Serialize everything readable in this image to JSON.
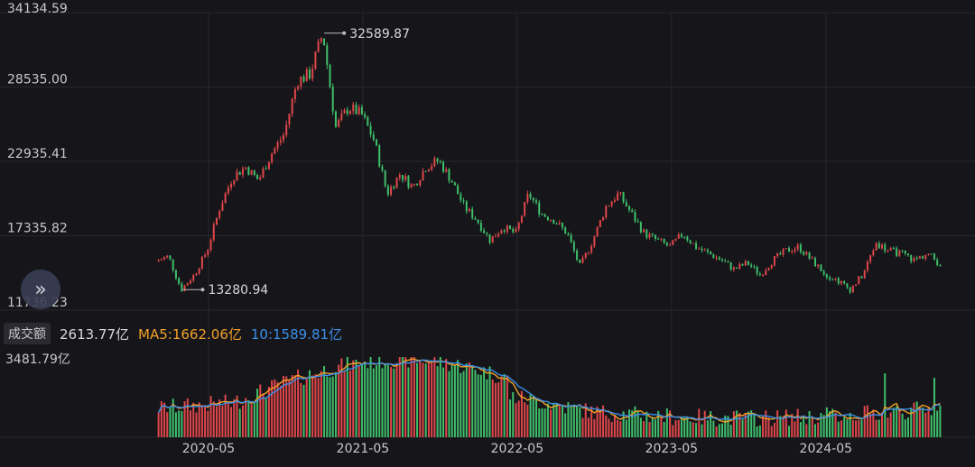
{
  "colors": {
    "up": "#e0464a",
    "down": "#3fbf6a",
    "ma5": "#f0a028",
    "ma10": "#3b8fe8",
    "grid": "#26262c",
    "text": "#c8c8cc"
  },
  "volume_legend": {
    "tag": "成交额",
    "current": "2613.77亿",
    "ma5_text": "MA5:1662.06亿",
    "ma10_text": "10:1589.81亿",
    "max_label": "3481.79亿"
  },
  "expand_button": {
    "icon": "double-chevron-right-icon",
    "glyph": "»"
  },
  "chart_data": {
    "type": "candlestick",
    "price_axis": {
      "ticks": [
        "34134.59",
        "28535.00",
        "22935.41",
        "17335.82",
        "11736.23"
      ],
      "range": [
        11736.23,
        34134.59
      ]
    },
    "time_axis": {
      "ticks": [
        "2020-05",
        "2021-05",
        "2022-05",
        "2023-05",
        "2024-05"
      ]
    },
    "annotations": [
      {
        "label": "32589.87",
        "type": "max",
        "date": "2021-02"
      },
      {
        "label": "13280.94",
        "type": "min",
        "date": "2020-03"
      }
    ],
    "price_path": [
      {
        "date": "2020-01",
        "close": 15400
      },
      {
        "date": "2020-02",
        "close": 15800
      },
      {
        "date": "2020-03",
        "close": 13280.94
      },
      {
        "date": "2020-04",
        "close": 14400
      },
      {
        "date": "2020-05",
        "close": 16200
      },
      {
        "date": "2020-06",
        "close": 19500
      },
      {
        "date": "2020-07",
        "close": 21800
      },
      {
        "date": "2020-08",
        "close": 22500
      },
      {
        "date": "2020-09",
        "close": 21500
      },
      {
        "date": "2020-10",
        "close": 23500
      },
      {
        "date": "2020-11",
        "close": 25000
      },
      {
        "date": "2020-12",
        "close": 29000
      },
      {
        "date": "2021-01",
        "close": 29500
      },
      {
        "date": "2021-02",
        "close": 32589.87
      },
      {
        "date": "2021-03",
        "close": 25500
      },
      {
        "date": "2021-04",
        "close": 27000
      },
      {
        "date": "2021-05",
        "close": 26500
      },
      {
        "date": "2021-06",
        "close": 24500
      },
      {
        "date": "2021-07",
        "close": 20500
      },
      {
        "date": "2021-08",
        "close": 22000
      },
      {
        "date": "2021-09",
        "close": 21000
      },
      {
        "date": "2021-10",
        "close": 22500
      },
      {
        "date": "2021-11",
        "close": 23000
      },
      {
        "date": "2021-12",
        "close": 21500
      },
      {
        "date": "2022-01",
        "close": 19500
      },
      {
        "date": "2022-02",
        "close": 18500
      },
      {
        "date": "2022-03",
        "close": 17000
      },
      {
        "date": "2022-04",
        "close": 18000
      },
      {
        "date": "2022-05",
        "close": 17500
      },
      {
        "date": "2022-06",
        "close": 20500
      },
      {
        "date": "2022-07",
        "close": 19000
      },
      {
        "date": "2022-08",
        "close": 18500
      },
      {
        "date": "2022-09",
        "close": 17500
      },
      {
        "date": "2022-10",
        "close": 15000
      },
      {
        "date": "2022-11",
        "close": 17000
      },
      {
        "date": "2022-12",
        "close": 19500
      },
      {
        "date": "2023-01",
        "close": 20500
      },
      {
        "date": "2023-02",
        "close": 19000
      },
      {
        "date": "2023-03",
        "close": 17500
      },
      {
        "date": "2023-04",
        "close": 17000
      },
      {
        "date": "2023-05",
        "close": 16500
      },
      {
        "date": "2023-06",
        "close": 17500
      },
      {
        "date": "2023-07",
        "close": 16500
      },
      {
        "date": "2023-08",
        "close": 16000
      },
      {
        "date": "2023-09",
        "close": 15500
      },
      {
        "date": "2023-10",
        "close": 14800
      },
      {
        "date": "2023-11",
        "close": 15300
      },
      {
        "date": "2023-12",
        "close": 14400
      },
      {
        "date": "2024-01",
        "close": 15500
      },
      {
        "date": "2024-02",
        "close": 16200
      },
      {
        "date": "2024-03",
        "close": 16500
      },
      {
        "date": "2024-04",
        "close": 15500
      },
      {
        "date": "2024-05",
        "close": 14500
      },
      {
        "date": "2024-06",
        "close": 14000
      },
      {
        "date": "2024-07",
        "close": 13300
      },
      {
        "date": "2024-08",
        "close": 14400
      },
      {
        "date": "2024-09",
        "close": 16800
      },
      {
        "date": "2024-10",
        "close": 16200
      },
      {
        "date": "2024-11",
        "close": 16000
      },
      {
        "date": "2024-12",
        "close": 15500
      },
      {
        "date": "2025-01",
        "close": 16000
      },
      {
        "date": "2025-02",
        "close": 15200
      }
    ],
    "volume": {
      "max": 3481.79,
      "unit": "亿",
      "last": 2613.77,
      "ma5_last": 1662.06,
      "ma10_last": 1589.81
    }
  }
}
